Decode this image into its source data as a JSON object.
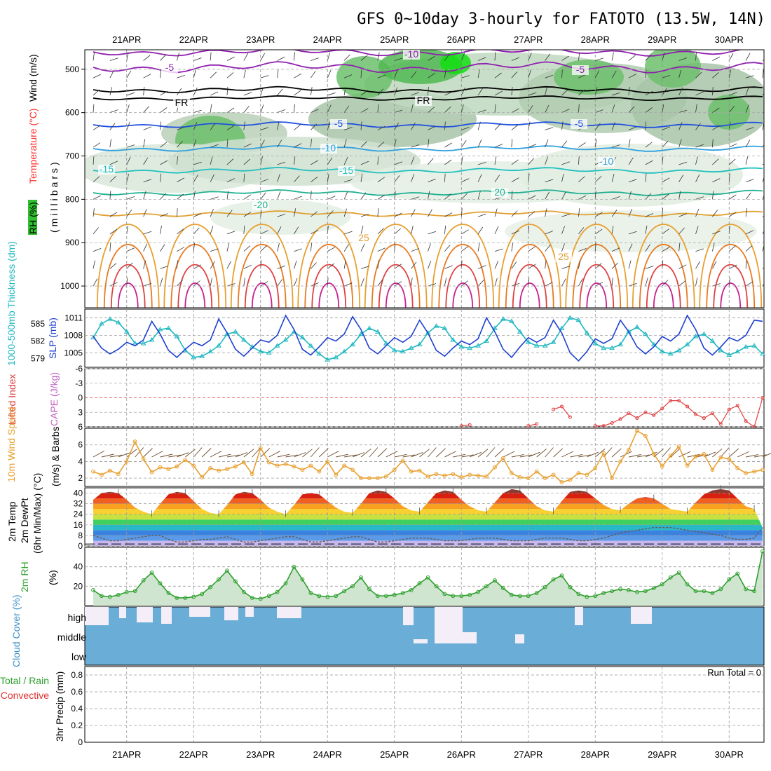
{
  "title": "GFS 0~10day 3-hourly for FATOTO (13.5W, 14N)",
  "dates": [
    "21APR",
    "22APR",
    "23APR",
    "24APR",
    "25APR",
    "26APR",
    "27APR",
    "28APR",
    "29APR",
    "30APR"
  ],
  "colors": {
    "temp_label": "#ff3030",
    "slp": "#1e40d0",
    "thickness": "#20b8c0",
    "lifted": "#e04040",
    "cape": "#c060c0",
    "wind10": "#e8a030",
    "rh2m": "#2ea02e",
    "cloud": "#6aaed8",
    "precip_total": "#2ea02e",
    "precip_conv": "#e03030"
  },
  "panels": {
    "upper": {
      "axis_label": "(millibars)",
      "rh_label": "RH (%)",
      "wind_label": "Wind (m/s)",
      "temp_label": "Temperature (°C)",
      "yticks": [
        "500",
        "600",
        "700",
        "800",
        "900",
        "1000"
      ],
      "contour_labels": [
        {
          "text": "-10",
          "color": "#9020b0"
        },
        {
          "text": "-5",
          "color": "#9020b0"
        },
        {
          "text": "-5",
          "color": "#9020b0"
        },
        {
          "text": "FR",
          "color": "#000000"
        },
        {
          "text": "FR",
          "color": "#000000"
        },
        {
          "text": "-5",
          "color": "#2050e0"
        },
        {
          "text": "-5",
          "color": "#2050e0"
        },
        {
          "text": "-10",
          "color": "#30a0e0"
        },
        {
          "text": "-10",
          "color": "#30a0e0"
        },
        {
          "text": "-15",
          "color": "#20c0c0"
        },
        {
          "text": "-15",
          "color": "#20c0c0"
        },
        {
          "text": "-20",
          "color": "#20b090"
        },
        {
          "text": "20",
          "color": "#20b090"
        },
        {
          "text": "25",
          "color": "#e0a030"
        },
        {
          "text": "25",
          "color": "#e0a030"
        }
      ]
    },
    "slp": {
      "label_left": "1000-500mb Thickness (dm)",
      "label_right": "SLP (mb)",
      "left_ticks": [
        "585",
        "582",
        "579"
      ],
      "right_ticks": [
        "1011",
        "1008",
        "1005"
      ]
    },
    "cape": {
      "label_left": "Lifted Index",
      "label_right": "CAPE (J/kg)",
      "ticks": [
        "-6",
        "-3",
        "0",
        "3",
        "6"
      ]
    },
    "wind10": {
      "label_left": "10m Wind Speed",
      "label_right": "(m/s) & Barbs",
      "ticks": [
        "6",
        "4",
        "2"
      ]
    },
    "temp2m": {
      "label_a": "2m Temp",
      "label_b": "2m DewPt",
      "label_c": "(6hr Min/Max) (°C)",
      "ticks": [
        "40",
        "32",
        "24",
        "16",
        "8",
        "0"
      ]
    },
    "rh2m": {
      "label": "2m RH",
      "unit": "(%)",
      "ticks": [
        "40",
        "20"
      ]
    },
    "cloud": {
      "label": "Cloud Cover (%)",
      "levels": [
        "high",
        "middle",
        "low"
      ]
    },
    "precip": {
      "label_a": "Total / Rain",
      "label_b": "Convective",
      "label_c": "3hr Precip (mm)",
      "ticks": [
        "0.8",
        "0.6",
        "0.4",
        "0.2",
        "0"
      ],
      "run_total": "Run Total = 0"
    }
  },
  "chart_data": [
    {
      "type": "line",
      "title": "",
      "ylabel": "SLP (mb)",
      "ylim": [
        1002.5,
        1012.5
      ],
      "x": [
        0,
        1,
        2,
        3,
        4,
        5,
        6,
        7,
        8,
        9,
        10,
        11,
        12,
        13,
        14,
        15,
        16,
        17,
        18,
        19,
        20,
        21,
        22,
        23,
        24,
        25,
        26,
        27,
        28,
        29,
        30,
        31,
        32,
        33,
        34,
        35,
        36,
        37,
        38,
        39,
        40,
        41,
        42,
        43,
        44,
        45,
        46,
        47,
        48,
        49,
        50,
        51,
        52,
        53,
        54,
        55,
        56,
        57,
        58,
        59,
        60,
        61,
        62,
        63,
        64,
        65,
        66,
        67,
        68,
        69,
        70,
        71,
        72,
        73,
        74,
        75,
        76,
        77,
        78,
        79,
        80
      ],
      "series": [
        {
          "name": "SLP",
          "values": [
            1007.8,
            1005.8,
            1004.8,
            1005.6,
            1006.8,
            1006.2,
            1007.2,
            1010.4,
            1008.2,
            1005.4,
            1004.2,
            1005.6,
            1006.8,
            1006.2,
            1007.2,
            1010.8,
            1008.4,
            1005.6,
            1004.4,
            1005.8,
            1007.2,
            1006.8,
            1008.0,
            1011.4,
            1009.0,
            1005.6,
            1004.6,
            1006.0,
            1007.6,
            1007.0,
            1008.2,
            1011.2,
            1009.0,
            1005.8,
            1004.8,
            1006.2,
            1007.6,
            1006.8,
            1007.8,
            1010.6,
            1008.4,
            1005.4,
            1004.4,
            1005.8,
            1007.0,
            1006.4,
            1007.4,
            1011.0,
            1008.6,
            1005.6,
            1004.2,
            1006.0,
            1007.6,
            1006.8,
            1007.6,
            1010.6,
            1008.4,
            1005.0,
            1003.6,
            1005.2,
            1007.4,
            1006.6,
            1007.4,
            1010.6,
            1008.6,
            1006.0,
            1004.8,
            1006.0,
            1007.8,
            1007.0,
            1008.2,
            1011.4,
            1009.0,
            1005.8,
            1004.6,
            1006.0,
            1007.6,
            1007.0,
            1008.0,
            1010.6,
            1010.4
          ]
        }
      ]
    },
    {
      "type": "line",
      "ylabel": "1000-500mb Thickness (dm)",
      "ylim": [
        577.5,
        587.5
      ],
      "x": [
        0,
        1,
        2,
        3,
        4,
        5,
        6,
        7,
        8,
        9,
        10,
        11,
        12,
        13,
        14,
        15,
        16,
        17,
        18,
        19,
        20,
        21,
        22,
        23,
        24,
        25,
        26,
        27,
        28,
        29,
        30,
        31,
        32,
        33,
        34,
        35,
        36,
        37,
        38,
        39,
        40,
        41,
        42,
        43,
        44,
        45,
        46,
        47,
        48,
        49,
        50,
        51,
        52,
        53,
        54,
        55,
        56,
        57,
        58,
        59,
        60,
        61,
        62,
        63,
        64,
        65,
        66,
        67,
        68,
        69,
        70,
        71,
        72,
        73,
        74,
        75,
        76,
        77,
        78,
        79,
        80
      ],
      "series": [
        {
          "name": "Thickness",
          "values": [
            582.6,
            585.0,
            585.8,
            585.2,
            583.6,
            581.6,
            581.6,
            582.2,
            584.0,
            584.2,
            582.8,
            580.4,
            579.2,
            579.4,
            580.2,
            581.2,
            583.2,
            583.6,
            582.2,
            581.0,
            580.2,
            580.0,
            581.2,
            582.2,
            583.6,
            582.6,
            581.2,
            579.8,
            578.8,
            579.2,
            580.2,
            581.4,
            583.2,
            584.2,
            583.6,
            581.6,
            580.4,
            580.2,
            580.8,
            581.4,
            583.4,
            584.6,
            584.2,
            582.2,
            581.0,
            580.8,
            581.2,
            582.0,
            584.2,
            585.8,
            585.4,
            583.6,
            581.8,
            581.2,
            581.2,
            581.8,
            584.2,
            586.0,
            585.6,
            583.4,
            581.6,
            580.8,
            580.8,
            581.4,
            583.6,
            584.4,
            583.2,
            581.4,
            580.2,
            579.8,
            580.4,
            581.4,
            582.8,
            583.2,
            582.0,
            580.4,
            579.6,
            580.2,
            581.0,
            581.2,
            579.8
          ]
        }
      ]
    },
    {
      "type": "line",
      "ylabel": "Lifted Index",
      "ylim": [
        6,
        -6
      ],
      "x": [
        44,
        45,
        52,
        53,
        55,
        56,
        57,
        60,
        61,
        62,
        63,
        64,
        65,
        66,
        67,
        68,
        69,
        70,
        71,
        72,
        73,
        74,
        75,
        76,
        77,
        78,
        79,
        80
      ],
      "series": [
        {
          "name": "Lifted Index",
          "values": [
            5.8,
            5.6,
            5.8,
            5.4,
            2.4,
            1.8,
            4.0,
            5.8,
            5.8,
            5.2,
            4.4,
            3.2,
            4.2,
            3.0,
            3.6,
            2.2,
            0.6,
            0.6,
            1.8,
            3.4,
            4.2,
            3.2,
            5.4,
            2.4,
            1.6,
            4.8,
            6.0,
            0.0
          ]
        }
      ]
    },
    {
      "type": "line",
      "ylabel": "10m Wind Speed (m/s)",
      "ylim": [
        1,
        8
      ],
      "x": [
        0,
        1,
        2,
        3,
        4,
        5,
        6,
        7,
        8,
        9,
        10,
        11,
        12,
        13,
        14,
        15,
        16,
        17,
        18,
        19,
        20,
        21,
        22,
        23,
        24,
        25,
        26,
        27,
        28,
        29,
        30,
        31,
        32,
        33,
        34,
        35,
        36,
        37,
        38,
        39,
        40,
        41,
        42,
        43,
        44,
        45,
        46,
        47,
        48,
        49,
        50,
        51,
        52,
        53,
        54,
        55,
        56,
        57,
        58,
        59,
        60,
        61,
        62,
        63,
        64,
        65,
        66,
        67,
        68,
        69,
        70,
        71,
        72,
        73,
        74,
        75,
        76,
        77,
        78,
        79,
        80
      ],
      "series": [
        {
          "name": "Wind Speed",
          "values": [
            2.8,
            2.4,
            2.9,
            2.5,
            4.0,
            6.4,
            4.3,
            2.7,
            3.3,
            3.1,
            3.4,
            4.2,
            3.5,
            2.1,
            3.2,
            2.9,
            3.1,
            3.4,
            3.9,
            2.5,
            5.6,
            3.9,
            3.5,
            3.7,
            3.4,
            3.0,
            3.5,
            2.8,
            4.0,
            2.4,
            3.5,
            3.0,
            2.0,
            2.0,
            2.0,
            2.2,
            3.0,
            4.1,
            2.8,
            2.9,
            2.2,
            2.5,
            2.3,
            2.5,
            2.1,
            2.4,
            2.3,
            2.2,
            3.3,
            4.4,
            2.6,
            2.1,
            2.0,
            2.8,
            2.0,
            2.4,
            1.5,
            1.8,
            2.6,
            2.4,
            3.2,
            5.0,
            2.0,
            4.0,
            5.4,
            7.7,
            7.1,
            4.9,
            3.4,
            4.7,
            5.8,
            3.5,
            4.6,
            4.9,
            3.0,
            4.5,
            4.3,
            3.2,
            2.6,
            2.8,
            3.0
          ]
        }
      ]
    },
    {
      "type": "area",
      "ylabel": "2m Temp (°C)",
      "ylim": [
        0,
        44
      ],
      "x": [
        0,
        1,
        2,
        3,
        4,
        5,
        6,
        7,
        8,
        9,
        10,
        11,
        12,
        13,
        14,
        15,
        16,
        17,
        18,
        19,
        20,
        21,
        22,
        23,
        24,
        25,
        26,
        27,
        28,
        29,
        30,
        31,
        32,
        33,
        34,
        35,
        36,
        37,
        38,
        39,
        40,
        41,
        42,
        43,
        44,
        45,
        46,
        47,
        48,
        49,
        50,
        51,
        52,
        53,
        54,
        55,
        56,
        57,
        58,
        59,
        60,
        61,
        62,
        63,
        64,
        65,
        66,
        67,
        68,
        69,
        70,
        71,
        72,
        73,
        74,
        75,
        76,
        77,
        78,
        79,
        80
      ],
      "series": [
        {
          "name": "2m Temp",
          "values": [
            35,
            40,
            41,
            40,
            35,
            29,
            26,
            24,
            32,
            39,
            41,
            40,
            34,
            28,
            25,
            24,
            31,
            39,
            41,
            40,
            35,
            29,
            26,
            24,
            31,
            39,
            40,
            39,
            34,
            29,
            26,
            25,
            32,
            40,
            42,
            41,
            36,
            30,
            27,
            26,
            33,
            40,
            42,
            41,
            35,
            30,
            27,
            26,
            33,
            40,
            43,
            42,
            36,
            30,
            27,
            26,
            34,
            41,
            42,
            41,
            36,
            31,
            28,
            27,
            32,
            36,
            37,
            36,
            32,
            28,
            27,
            26,
            33,
            39,
            42,
            43,
            42,
            36,
            30,
            28,
            14
          ]
        },
        {
          "name": "2m DewPt",
          "values": [
            8,
            6,
            4,
            4,
            5,
            6,
            7,
            8,
            8,
            5,
            3,
            3,
            4,
            5,
            5,
            6,
            7,
            5,
            3,
            3,
            4,
            5,
            6,
            7,
            7,
            5,
            3,
            3,
            4,
            5,
            6,
            7,
            7,
            5,
            3,
            3,
            4,
            5,
            6,
            6,
            6,
            5,
            4,
            4,
            4,
            5,
            6,
            6,
            6,
            5,
            4,
            4,
            4,
            5,
            6,
            6,
            6,
            5,
            4,
            4,
            5,
            6,
            8,
            10,
            11,
            12,
            13,
            14,
            14,
            14,
            13,
            12,
            11,
            10,
            9,
            8,
            6,
            5,
            5,
            6,
            14
          ]
        }
      ]
    },
    {
      "type": "line",
      "ylabel": "2m RH (%)",
      "ylim": [
        0,
        60
      ],
      "x": [
        0,
        1,
        2,
        3,
        4,
        5,
        6,
        7,
        8,
        9,
        10,
        11,
        12,
        13,
        14,
        15,
        16,
        17,
        18,
        19,
        20,
        21,
        22,
        23,
        24,
        25,
        26,
        27,
        28,
        29,
        30,
        31,
        32,
        33,
        34,
        35,
        36,
        37,
        38,
        39,
        40,
        41,
        42,
        43,
        44,
        45,
        46,
        47,
        48,
        49,
        50,
        51,
        52,
        53,
        54,
        55,
        56,
        57,
        58,
        59,
        60,
        61,
        62,
        63,
        64,
        65,
        66,
        67,
        68,
        69,
        70,
        71,
        72,
        73,
        74,
        75,
        76,
        77,
        78,
        79,
        80
      ],
      "series": [
        {
          "name": "2m RH",
          "values": [
            16,
            10,
            9,
            11,
            14,
            15,
            26,
            34,
            23,
            13,
            8,
            8,
            9,
            12,
            19,
            27,
            36,
            25,
            14,
            8,
            7,
            10,
            14,
            23,
            40,
            27,
            13,
            10,
            9,
            10,
            15,
            20,
            29,
            17,
            10,
            10,
            11,
            13,
            16,
            23,
            29,
            20,
            12,
            10,
            10,
            11,
            14,
            20,
            26,
            18,
            11,
            10,
            10,
            13,
            19,
            27,
            31,
            19,
            12,
            9,
            10,
            13,
            15,
            17,
            16,
            14,
            15,
            18,
            22,
            29,
            34,
            22,
            15,
            15,
            13,
            17,
            27,
            33,
            17,
            15,
            56
          ]
        }
      ]
    },
    {
      "type": "bar",
      "ylabel": "3hr Precip (mm)",
      "ylim": [
        0,
        0.9
      ],
      "categories": [
        "21APR",
        "22APR",
        "23APR",
        "24APR",
        "25APR",
        "26APR",
        "27APR",
        "28APR",
        "29APR",
        "30APR"
      ],
      "values": [
        0,
        0,
        0,
        0,
        0,
        0,
        0,
        0,
        0,
        0
      ]
    }
  ]
}
